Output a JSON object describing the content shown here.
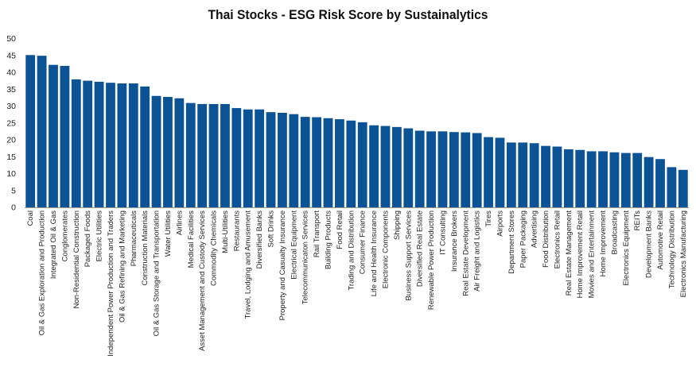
{
  "chart_data": {
    "type": "bar",
    "title": "Thai Stocks - ESG Risk Score by Sustainalytics",
    "xlabel": "",
    "ylabel": "",
    "ylim": [
      0,
      50
    ],
    "yticks": [
      0,
      5,
      10,
      15,
      20,
      25,
      30,
      35,
      40,
      45,
      50
    ],
    "grid": false,
    "legend": "none",
    "bar_color": "#0b5394",
    "categories": [
      "Coal",
      "Oil & Gas Exploration and Production",
      "Integrated Oil & Gas",
      "Conglomerates",
      "Non-Residential Construction",
      "Packaged Foods",
      "Electric Utilities",
      "Independent Power Production and Traders",
      "Oil & Gas Refining and Marketing",
      "Pharmaceuticals",
      "Construction Materials",
      "Oil & Gas Storage and Transportation",
      "Water Utilities",
      "Airlines",
      "Medical Facilities",
      "Asset Management and Custody Services",
      "Commodity Chemicals",
      "Multi-Utilities",
      "Restaurants",
      "Travel, Lodging and Amusement",
      "Diversified Banks",
      "Soft Drinks",
      "Property and Casualty Insurance",
      "Electrical Equipment",
      "Telecommunicaton Services",
      "Rail Transport",
      "Building Products",
      "Food Retail",
      "Trading and Distribution",
      "Consumer Finance",
      "Life and Health Insurance",
      "Electronic Components",
      "Shipping",
      "Business Support Services",
      "Diversified Real Estate",
      "Renewable Power Production",
      "IT Consulting",
      "Insurance Brokers",
      "Real Estate Development",
      "Air Freight and Logistics",
      "Tires",
      "Airports",
      "Department Stores",
      "Paper Packaging",
      "Advertising",
      "Food Distribution",
      "Electronics Retail",
      "Real Estate Management",
      "Home Improvement Retail",
      "Movies and Entertainment",
      "Home Improvement",
      "Broadcasting",
      "Electronics Equipment",
      "REITs",
      "Development Banks",
      "Automotive Retail",
      "Technology Distribution",
      "Electronics Manufacturing"
    ],
    "values": [
      45.1,
      44.9,
      42.2,
      41.9,
      37.9,
      37.5,
      37.2,
      36.9,
      36.7,
      36.7,
      35.8,
      33.0,
      32.7,
      32.3,
      30.9,
      30.6,
      30.6,
      30.6,
      29.4,
      29.0,
      29.0,
      28.2,
      28.0,
      27.6,
      26.8,
      26.7,
      26.4,
      26.1,
      25.7,
      25.2,
      24.3,
      24.1,
      23.8,
      23.4,
      22.7,
      22.5,
      22.5,
      22.3,
      22.2,
      22.0,
      20.8,
      20.6,
      19.2,
      19.2,
      19.0,
      18.2,
      18.0,
      17.2,
      17.0,
      16.6,
      16.6,
      16.3,
      16.1,
      16.1,
      14.9,
      14.3,
      11.9,
      11.1
    ]
  }
}
